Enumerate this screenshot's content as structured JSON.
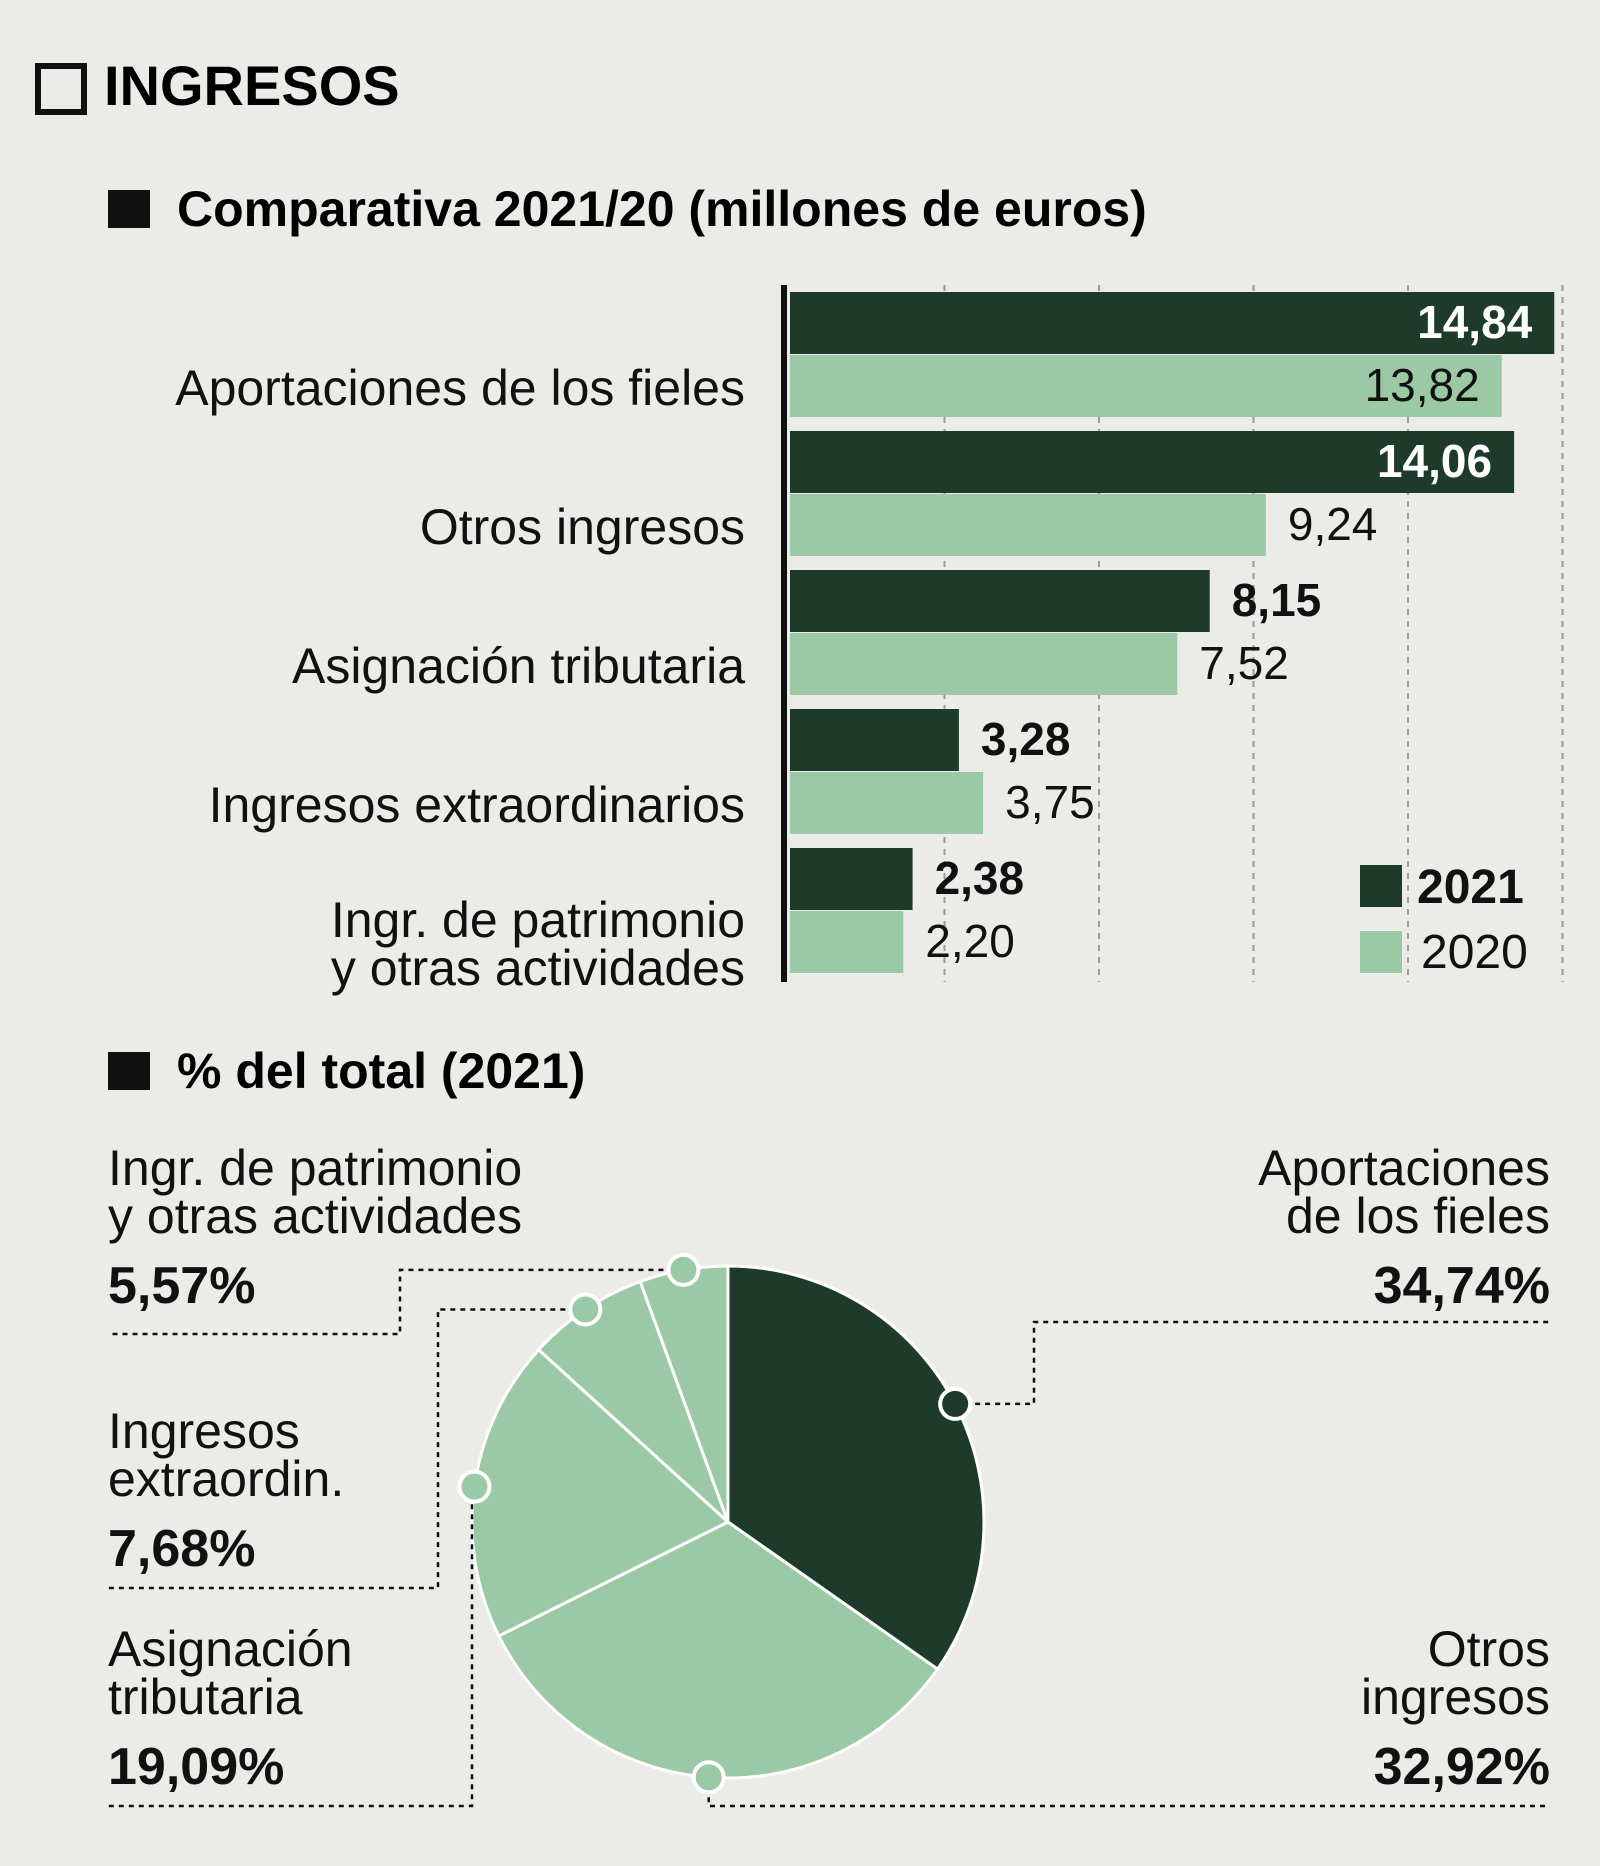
{
  "header": {
    "title": "INGRESOS"
  },
  "colors": {
    "background": "#ebece7",
    "dark": "#1e3a2b",
    "light": "#9cc9a5",
    "text": "#111111",
    "grid": "#9a9a9a"
  },
  "chart_data": [
    {
      "type": "bar",
      "orientation": "horizontal",
      "title": "Comparativa 2021/20 (millones de euros)",
      "categories": [
        [
          "Aportaciones de los fieles"
        ],
        [
          "Otros ingresos"
        ],
        [
          "Asignación tributaria"
        ],
        [
          "Ingresos extraordinarios"
        ],
        [
          "Ingr. de patrimonio",
          "y otras actividades"
        ]
      ],
      "series": [
        {
          "name": "2021",
          "values": [
            14.84,
            14.06,
            8.15,
            3.28,
            2.38
          ],
          "labels": [
            "14,84",
            "14,06",
            "8,15",
            "3,28",
            "2,38"
          ]
        },
        {
          "name": "2020",
          "values": [
            13.82,
            9.24,
            7.52,
            3.75,
            2.2
          ],
          "labels": [
            "13,82",
            "9,24",
            "7,52",
            "3,75",
            "2,20"
          ]
        }
      ],
      "xlim": [
        0,
        15
      ],
      "grid_ticks": [
        3,
        6,
        9,
        12,
        15
      ],
      "legend": "bottom-right"
    },
    {
      "type": "pie",
      "title": "% del total (2021)",
      "slices": [
        {
          "name": "Aportaciones de los fieles",
          "label_lines": [
            "Aportaciones",
            "de los fieles"
          ],
          "value": 34.74,
          "label": "34,74%",
          "color": "dark"
        },
        {
          "name": "Otros ingresos",
          "label_lines": [
            "Otros",
            "ingresos"
          ],
          "value": 32.92,
          "label": "32,92%",
          "color": "light"
        },
        {
          "name": "Asignación tributaria",
          "label_lines": [
            "Asignación",
            "tributaria"
          ],
          "value": 19.09,
          "label": "19,09%",
          "color": "light"
        },
        {
          "name": "Ingresos extraordinarios",
          "label_lines": [
            "Ingresos",
            "extraordin."
          ],
          "value": 7.68,
          "label": "7,68%",
          "color": "light"
        },
        {
          "name": "Ingr. de patrimonio y otras actividades",
          "label_lines": [
            "Ingr. de patrimonio",
            "y otras actividades"
          ],
          "value": 5.57,
          "label": "5,57%",
          "color": "light"
        }
      ]
    }
  ]
}
